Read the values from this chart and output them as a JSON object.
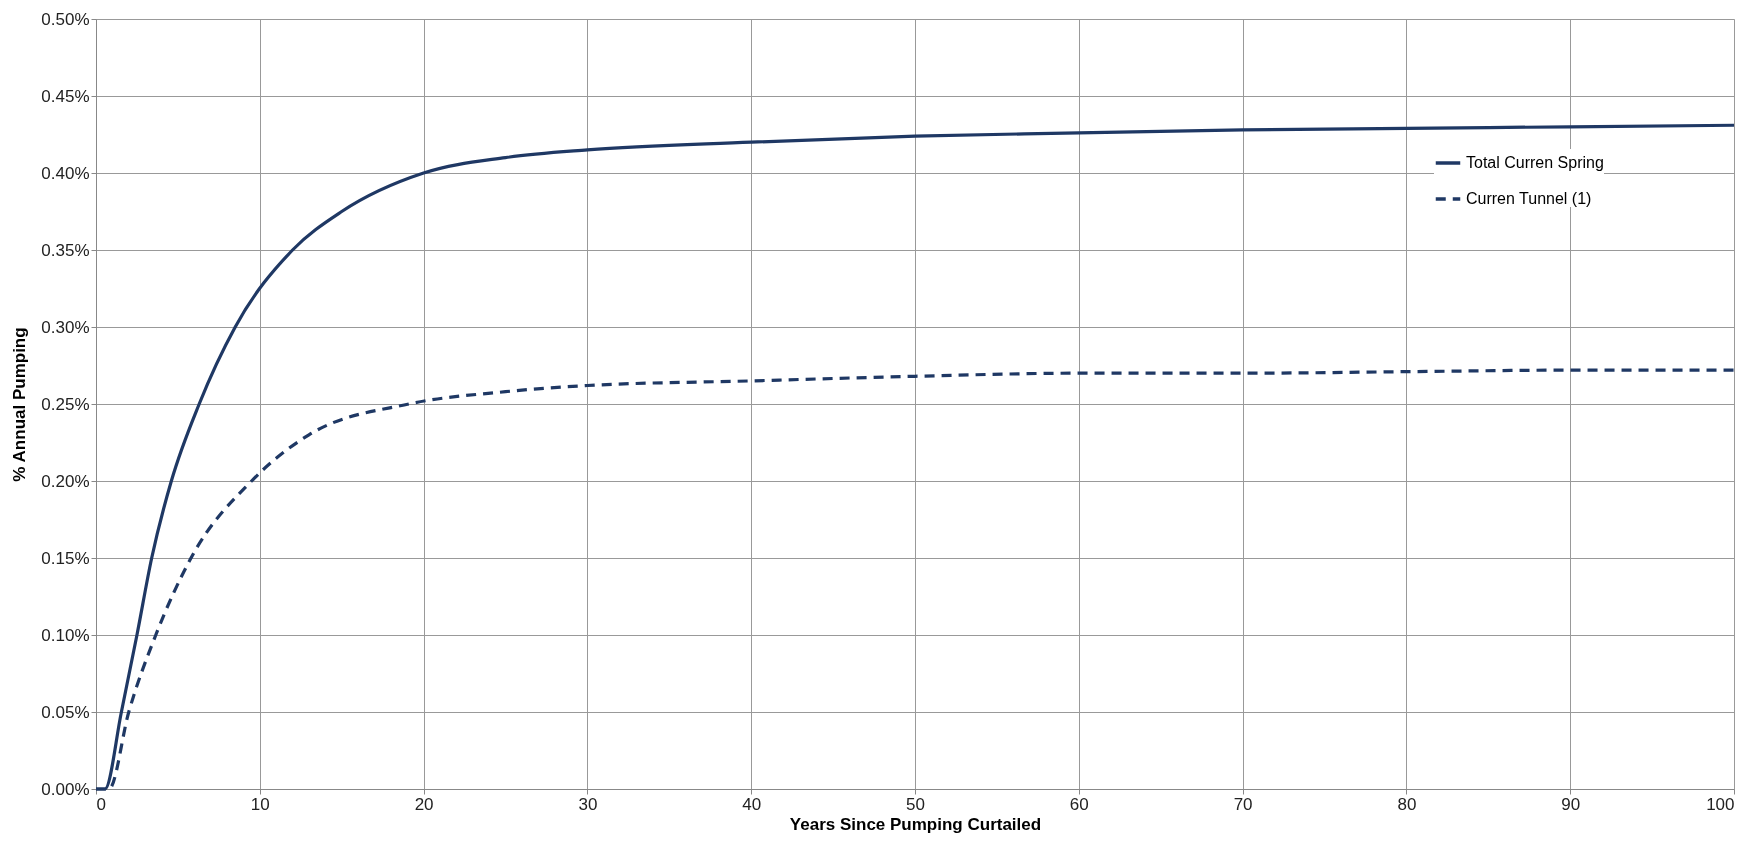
{
  "chart_data": {
    "type": "line",
    "xlabel": "Years Since Pumping Curtailed",
    "ylabel": "% Annual Pumping",
    "xlim": [
      0,
      100
    ],
    "xticks": [
      0,
      10,
      20,
      30,
      40,
      50,
      60,
      70,
      80,
      90,
      100
    ],
    "ylim": [
      0,
      0.5
    ],
    "yticks": [
      {
        "value": 0,
        "label": "0.00%"
      },
      {
        "value": 0.05,
        "label": "0.05%"
      },
      {
        "value": 0.1,
        "label": "0.10%"
      },
      {
        "value": 0.15,
        "label": "0.15%"
      },
      {
        "value": 0.2,
        "label": "0.20%"
      },
      {
        "value": 0.25,
        "label": "0.25%"
      },
      {
        "value": 0.3,
        "label": "0.30%"
      },
      {
        "value": 0.35,
        "label": "0.35%"
      },
      {
        "value": 0.4,
        "label": "0.40%"
      },
      {
        "value": 0.45,
        "label": "0.45%"
      },
      {
        "value": 0.5,
        "label": "0.50%"
      }
    ],
    "grid": true,
    "legend": "top right",
    "marker": "none",
    "series": [
      {
        "name": "Total Curren Spring",
        "color": "#1f3864",
        "line_style": "solid",
        "x": [
          0,
          0.55,
          1.55,
          2.5,
          3.4,
          4.6,
          6.3,
          8.5,
          12,
          15,
          20,
          25,
          30,
          40,
          50,
          60,
          70,
          80,
          90,
          100
        ],
        "values": [
          0,
          0,
          0.05,
          0.1,
          0.15,
          0.2,
          0.25,
          0.3,
          0.35,
          0.375,
          0.4,
          0.41,
          0.415,
          0.42,
          0.424,
          0.426,
          0.428,
          0.429,
          0.43,
          0.431
        ]
      },
      {
        "name": "Curren Tunnel (1)",
        "color": "#1f3864",
        "line_style": "dashed",
        "x": [
          0,
          0.8,
          2,
          3.65,
          5.8,
          9.5,
          13,
          19.1,
          25,
          30,
          40,
          50,
          60,
          70,
          80,
          90,
          100
        ],
        "values": [
          0,
          0,
          0.05,
          0.1,
          0.15,
          0.2,
          0.23,
          0.25,
          0.258,
          0.262,
          0.265,
          0.268,
          0.27,
          0.27,
          0.271,
          0.272,
          0.272
        ]
      }
    ]
  }
}
